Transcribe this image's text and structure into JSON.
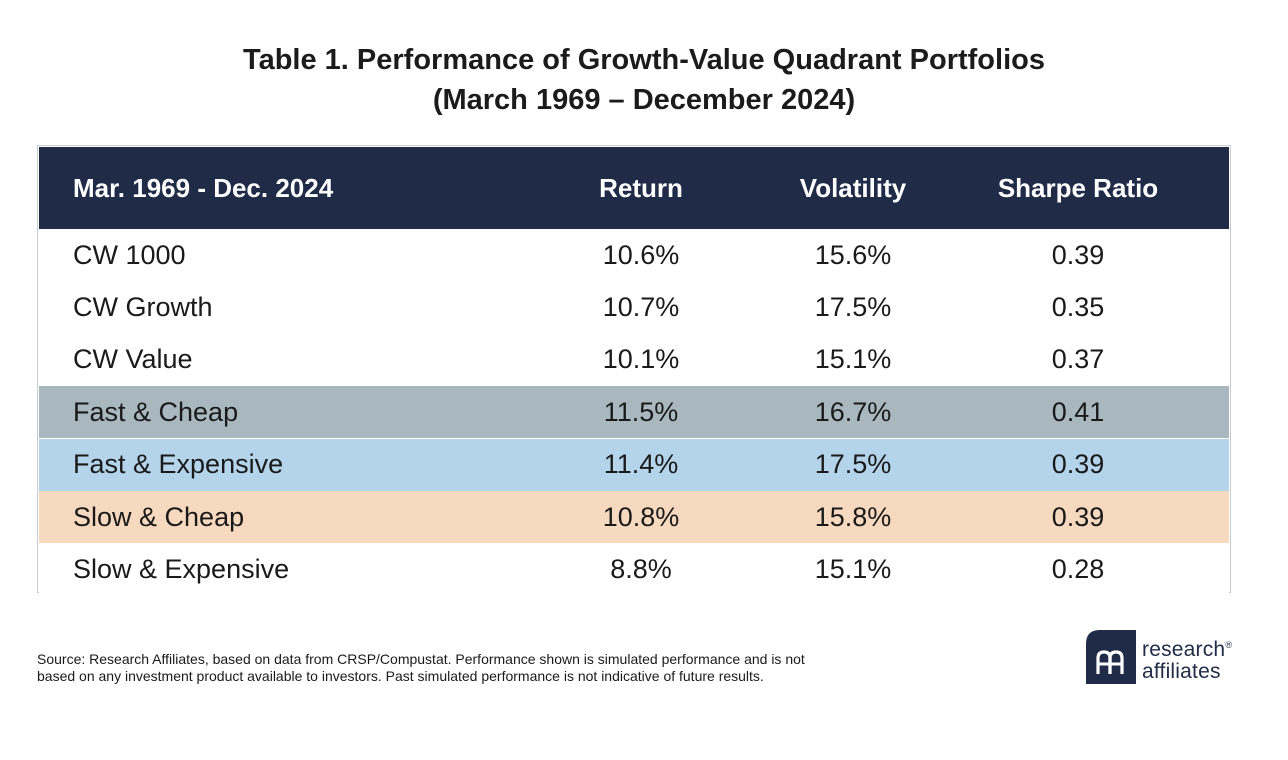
{
  "title": {
    "line1": "Table 1. Performance of Growth-Value Quadrant Portfolios",
    "line2": "(March 1969 – December 2024)"
  },
  "chart_data": {
    "type": "table",
    "columns": [
      "Mar. 1969 - Dec. 2024",
      "Return",
      "Volatility",
      "Sharpe Ratio"
    ],
    "rows": [
      {
        "name": "CW 1000",
        "return": "10.6%",
        "volatility": "15.6%",
        "sharpe": "0.39",
        "bg": "#ffffff"
      },
      {
        "name": "CW Growth",
        "return": "10.7%",
        "volatility": "17.5%",
        "sharpe": "0.35",
        "bg": "#ffffff"
      },
      {
        "name": "CW Value",
        "return": "10.1%",
        "volatility": "15.1%",
        "sharpe": "0.37",
        "bg": "#ffffff"
      },
      {
        "name": "Fast & Cheap",
        "return": "11.5%",
        "volatility": "16.7%",
        "sharpe": "0.41",
        "bg": "#a9b7bf"
      },
      {
        "name": "Fast & Expensive",
        "return": "11.4%",
        "volatility": "17.5%",
        "sharpe": "0.39",
        "bg": "#b3d4ea"
      },
      {
        "name": "Slow & Cheap",
        "return": "10.8%",
        "volatility": "15.8%",
        "sharpe": "0.39",
        "bg": "#f6d9bf"
      },
      {
        "name": "Slow & Expensive",
        "return": "8.8%",
        "volatility": "15.1%",
        "sharpe": "0.28",
        "bg": "#ffffff"
      }
    ],
    "header_bg": "#1f2b47"
  },
  "source": {
    "line1": "Source: Research Affiliates, based on data from CRSP/Compustat. Performance shown is simulated performance and is not",
    "line2": "based on any investment product available to investors. Past simulated performance is not indicative of future results."
  },
  "logo": {
    "line1": "research",
    "line2": "affiliates",
    "icon": "research-affiliates-logo-icon",
    "color": "#1f2b47"
  }
}
